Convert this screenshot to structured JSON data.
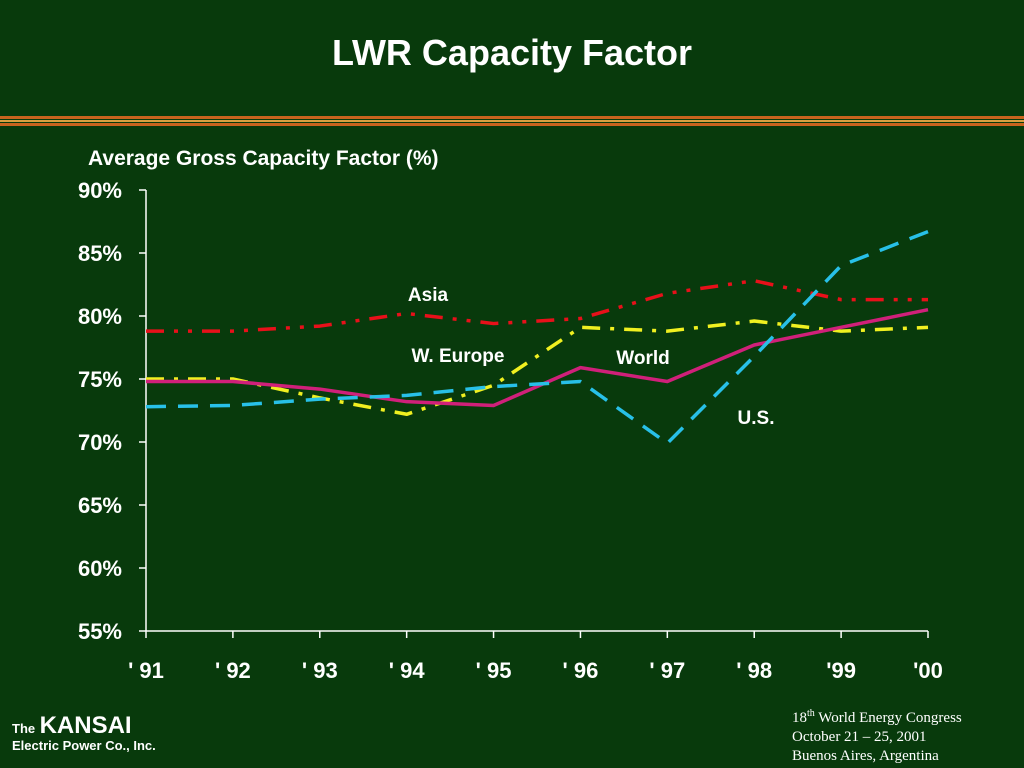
{
  "slide": {
    "title": "LWR Capacity Factor"
  },
  "footer": {
    "company_prefix": "The",
    "company_name": "KANSAI",
    "company_sub": "Electric Power Co., Inc.",
    "event_number": "18",
    "event_suffix": "th",
    "event_name": "World Energy Congress",
    "event_dates": "October 21 – 25, 2001",
    "event_place": "Buenos Aires, Argentina"
  },
  "colors": {
    "background": "#083a0c",
    "accent_rule": "#c8641e",
    "axis": "#ffffff",
    "asia": "#e8101a",
    "w_europe": "#f0f020",
    "world": "#d0207a",
    "us": "#28c0e8"
  },
  "chart_data": {
    "type": "line",
    "title": "Average Gross Capacity Factor (%)",
    "xlabel": "",
    "ylabel": "",
    "categories": [
      "' 91",
      "' 92",
      "' 93",
      "' 94",
      "' 95",
      "' 96",
      "' 97",
      "' 98",
      "'99",
      "'00"
    ],
    "yticks": [
      "90%",
      "85%",
      "80%",
      "75%",
      "70%",
      "65%",
      "60%",
      "55%"
    ],
    "ylim": [
      55,
      90
    ],
    "grid": false,
    "series": [
      {
        "name": "Asia",
        "values": [
          78.8,
          78.8,
          79.2,
          80.2,
          79.4,
          79.8,
          81.8,
          82.8,
          81.3,
          81.3
        ],
        "color": "#e8101a",
        "dash": "dashdotdot"
      },
      {
        "name": "W. Europe",
        "values": [
          75.0,
          75.0,
          73.5,
          72.2,
          74.5,
          79.1,
          78.8,
          79.6,
          78.8,
          79.1
        ],
        "color": "#f0f020",
        "dash": "dashdot"
      },
      {
        "name": "World",
        "values": [
          74.8,
          74.8,
          74.2,
          73.2,
          72.9,
          75.9,
          74.8,
          77.7,
          79.1,
          80.5
        ],
        "color": "#d0207a",
        "dash": "solid"
      },
      {
        "name": "U.S.",
        "values": [
          72.8,
          72.9,
          73.4,
          73.7,
          74.4,
          74.8,
          69.9,
          76.8,
          84.0,
          86.7
        ],
        "color": "#28c0e8",
        "dash": "dashed"
      }
    ]
  }
}
